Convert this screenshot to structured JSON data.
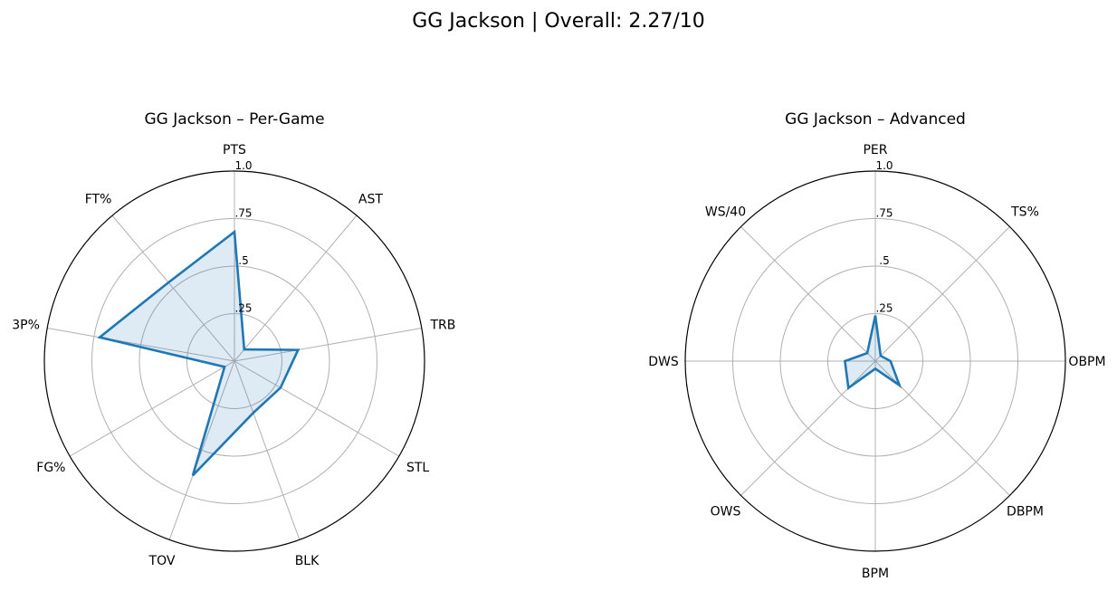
{
  "figure": {
    "title": "GG Jackson | Overall: 2.27/10"
  },
  "chart_data": [
    {
      "type": "radar",
      "title": "GG Jackson – Per-Game",
      "categories": [
        "PTS",
        "AST",
        "TRB",
        "STL",
        "BLK",
        "TOV",
        "FG%",
        "3P%",
        "FT%"
      ],
      "values": [
        0.68,
        0.08,
        0.34,
        0.28,
        0.29,
        0.64,
        0.06,
        0.72,
        0.54
      ],
      "rlim": [
        0,
        1
      ],
      "rticks": [
        ".25",
        ".5",
        ".75",
        "1.0"
      ],
      "grid": true,
      "colors": {
        "line": "#1f77b4",
        "fill": "#1f77b4",
        "grid": "#b0b0b0",
        "frame": "#000000"
      }
    },
    {
      "type": "radar",
      "title": "GG Jackson – Advanced",
      "categories": [
        "PER",
        "TS%",
        "OBPM",
        "DBPM",
        "BPM",
        "OWS",
        "DWS",
        "WS/40"
      ],
      "values": [
        0.24,
        0.04,
        0.08,
        0.18,
        0.04,
        0.2,
        0.16,
        0.06
      ],
      "rlim": [
        0,
        1
      ],
      "rticks": [
        ".25",
        ".5",
        ".75",
        "1.0"
      ],
      "grid": true,
      "colors": {
        "line": "#1f77b4",
        "fill": "#1f77b4",
        "grid": "#b0b0b0",
        "frame": "#000000"
      }
    }
  ]
}
